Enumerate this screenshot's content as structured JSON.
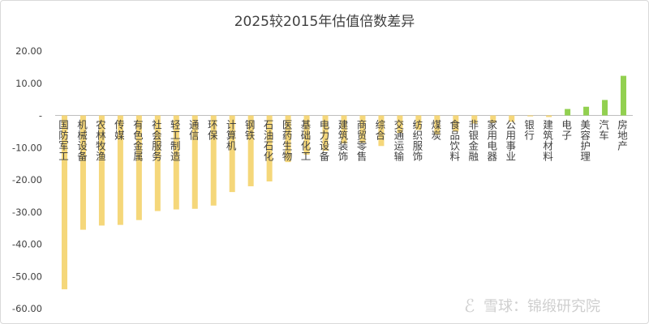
{
  "chart_data": {
    "type": "bar",
    "title": "2025较2015年估值倍数差异",
    "xlabel": "",
    "ylabel": "",
    "ylim": [
      -60,
      20
    ],
    "yticks": [
      20,
      10,
      0,
      -10,
      -20,
      -30,
      -40,
      -50,
      -60
    ],
    "ytick_labels": [
      "20.00",
      "10.00",
      "-",
      "-10.00",
      "-20.00",
      "-30.00",
      "-40.00",
      "-50.00",
      "-60.00"
    ],
    "grid": false,
    "legend": "none",
    "categories": [
      "国防军工",
      "机械设备",
      "农林牧渔",
      "传媒",
      "有色金属",
      "社会服务",
      "轻工制造",
      "通信",
      "环保",
      "计算机",
      "钢铁",
      "石油石化",
      "医药生物",
      "基础化工",
      "电力设备",
      "建筑装饰",
      "商贸零售",
      "综合",
      "交通运输",
      "纺织服饰",
      "煤炭",
      "食品饮料",
      "非银金融",
      "家用电器",
      "公用事业",
      "银行",
      "建筑材料",
      "电子",
      "美容护理",
      "汽车",
      "房地产"
    ],
    "values": [
      -54.0,
      -35.5,
      -34.2,
      -34.0,
      -32.5,
      -29.7,
      -29.2,
      -29.0,
      -28.0,
      -23.8,
      -22.0,
      -20.5,
      -14.5,
      -12.2,
      -11.0,
      -8.7,
      -8.5,
      -9.5,
      -5.5,
      -4.5,
      -6.0,
      -5.0,
      -2.5,
      -2.2,
      -2.0,
      -0.3,
      -0.5,
      2.0,
      2.7,
      4.8,
      12.3
    ],
    "colors": {
      "negative": "#f5d77a",
      "positive": "#92d050"
    }
  },
  "watermark": "雪球：锦缎研究院"
}
